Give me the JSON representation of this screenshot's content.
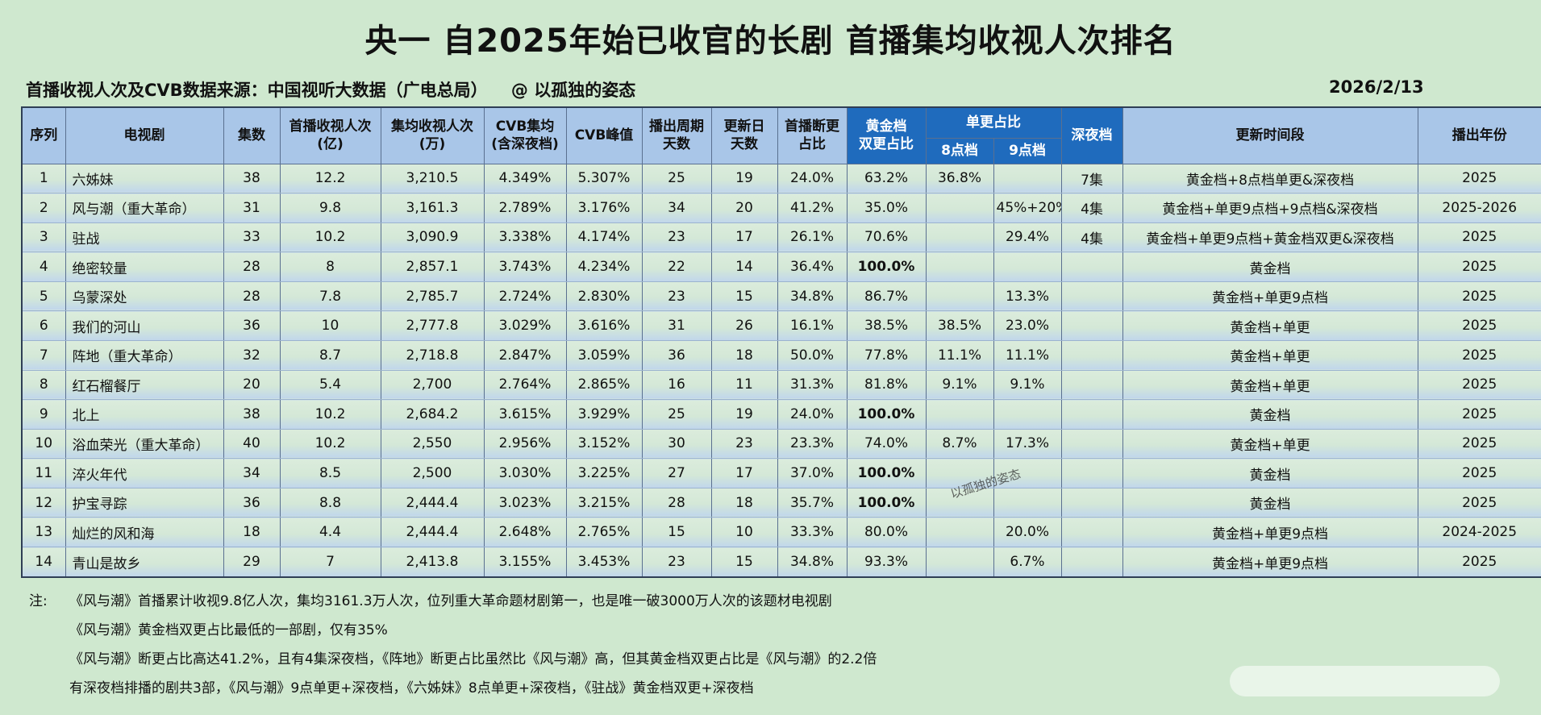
{
  "title": "央一 自2025年始已收官的长剧 首播集均收视人次排名",
  "source": "首播收视人次及CVB数据来源：中国视听大数据（广电总局）    @ 以孤独的姿态",
  "date": "2026/2/13",
  "headers": {
    "rank": "序列",
    "drama": "电视剧",
    "episodes": "集数",
    "viewers_line1": "首播收视人次",
    "viewers_line2": "(亿)",
    "avg_line1": "集均收视人次",
    "avg_line2": "(万)",
    "cvb_avg_line1": "CVB集均",
    "cvb_avg_line2": "(含深夜档)",
    "cvb_peak": "CVB峰值",
    "cycle_line1": "播出周期",
    "cycle_line2": "天数",
    "update_line1": "更新日",
    "update_line2": "天数",
    "break_line1": "首播断更",
    "break_line2": "占比",
    "gold_line1": "黄金档",
    "gold_line2": "双更占比",
    "single_group": "单更占比",
    "single_8": "8点档",
    "single_9": "9点档",
    "late": "深夜档",
    "slot": "更新时间段",
    "year": "播出年份"
  },
  "rows": [
    {
      "no": "1",
      "name": "六姊妹",
      "eps": "38",
      "viewers": "12.2",
      "avg": "3,210.5",
      "cvb_avg": "4.349%",
      "cvb_peak": "5.307%",
      "cycle": "25",
      "update": "19",
      "break": "24.0%",
      "gold": "63.2%",
      "s8": "36.8%",
      "s9": "",
      "late": "7集",
      "slot": "黄金档+8点档单更&深夜档",
      "year": "2025"
    },
    {
      "no": "2",
      "name": "风与潮（重大革命）",
      "eps": "31",
      "viewers": "9.8",
      "avg": "3,161.3",
      "cvb_avg": "2.789%",
      "cvb_peak": "3.176%",
      "cycle": "34",
      "update": "20",
      "break": "41.2%",
      "gold": "35.0%",
      "s8": "",
      "s9": "45%+20%",
      "late": "4集",
      "slot": "黄金档+单更9点档+9点档&深夜档",
      "year": "2025-2026"
    },
    {
      "no": "3",
      "name": "驻战",
      "eps": "33",
      "viewers": "10.2",
      "avg": "3,090.9",
      "cvb_avg": "3.338%",
      "cvb_peak": "4.174%",
      "cycle": "23",
      "update": "17",
      "break": "26.1%",
      "gold": "70.6%",
      "s8": "",
      "s9": "29.4%",
      "late": "4集",
      "slot": "黄金档+单更9点档+黄金档双更&深夜档",
      "year": "2025"
    },
    {
      "no": "4",
      "name": "绝密较量",
      "eps": "28",
      "viewers": "8",
      "avg": "2,857.1",
      "cvb_avg": "3.743%",
      "cvb_peak": "4.234%",
      "cycle": "22",
      "update": "14",
      "break": "36.4%",
      "gold": "100.0%",
      "s8": "",
      "s9": "",
      "late": "",
      "slot": "黄金档",
      "year": "2025"
    },
    {
      "no": "5",
      "name": "乌蒙深处",
      "eps": "28",
      "viewers": "7.8",
      "avg": "2,785.7",
      "cvb_avg": "2.724%",
      "cvb_peak": "2.830%",
      "cycle": "23",
      "update": "15",
      "break": "34.8%",
      "gold": "86.7%",
      "s8": "",
      "s9": "13.3%",
      "late": "",
      "slot": "黄金档+单更9点档",
      "year": "2025"
    },
    {
      "no": "6",
      "name": "我们的河山",
      "eps": "36",
      "viewers": "10",
      "avg": "2,777.8",
      "cvb_avg": "3.029%",
      "cvb_peak": "3.616%",
      "cycle": "31",
      "update": "26",
      "break": "16.1%",
      "gold": "38.5%",
      "s8": "38.5%",
      "s9": "23.0%",
      "late": "",
      "slot": "黄金档+单更",
      "year": "2025"
    },
    {
      "no": "7",
      "name": "阵地（重大革命）",
      "eps": "32",
      "viewers": "8.7",
      "avg": "2,718.8",
      "cvb_avg": "2.847%",
      "cvb_peak": "3.059%",
      "cycle": "36",
      "update": "18",
      "break": "50.0%",
      "gold": "77.8%",
      "s8": "11.1%",
      "s9": "11.1%",
      "late": "",
      "slot": "黄金档+单更",
      "year": "2025"
    },
    {
      "no": "8",
      "name": "红石榴餐厅",
      "eps": "20",
      "viewers": "5.4",
      "avg": "2,700",
      "cvb_avg": "2.764%",
      "cvb_peak": "2.865%",
      "cycle": "16",
      "update": "11",
      "break": "31.3%",
      "gold": "81.8%",
      "s8": "9.1%",
      "s9": "9.1%",
      "late": "",
      "slot": "黄金档+单更",
      "year": "2025"
    },
    {
      "no": "9",
      "name": "北上",
      "eps": "38",
      "viewers": "10.2",
      "avg": "2,684.2",
      "cvb_avg": "3.615%",
      "cvb_peak": "3.929%",
      "cycle": "25",
      "update": "19",
      "break": "24.0%",
      "gold": "100.0%",
      "s8": "",
      "s9": "",
      "late": "",
      "slot": "黄金档",
      "year": "2025"
    },
    {
      "no": "10",
      "name": "浴血荣光（重大革命）",
      "eps": "40",
      "viewers": "10.2",
      "avg": "2,550",
      "cvb_avg": "2.956%",
      "cvb_peak": "3.152%",
      "cycle": "30",
      "update": "23",
      "break": "23.3%",
      "gold": "74.0%",
      "s8": "8.7%",
      "s9": "17.3%",
      "late": "",
      "slot": "黄金档+单更",
      "year": "2025"
    },
    {
      "no": "11",
      "name": "淬火年代",
      "eps": "34",
      "viewers": "8.5",
      "avg": "2,500",
      "cvb_avg": "3.030%",
      "cvb_peak": "3.225%",
      "cycle": "27",
      "update": "17",
      "break": "37.0%",
      "gold": "100.0%",
      "s8": "",
      "s9": "",
      "late": "",
      "slot": "黄金档",
      "year": "2025"
    },
    {
      "no": "12",
      "name": "护宝寻踪",
      "eps": "36",
      "viewers": "8.8",
      "avg": "2,444.4",
      "cvb_avg": "3.023%",
      "cvb_peak": "3.215%",
      "cycle": "28",
      "update": "18",
      "break": "35.7%",
      "gold": "100.0%",
      "s8": "",
      "s9": "",
      "late": "",
      "slot": "黄金档",
      "year": "2025"
    },
    {
      "no": "13",
      "name": "灿烂的风和海",
      "eps": "18",
      "viewers": "4.4",
      "avg": "2,444.4",
      "cvb_avg": "2.648%",
      "cvb_peak": "2.765%",
      "cycle": "15",
      "update": "10",
      "break": "33.3%",
      "gold": "80.0%",
      "s8": "",
      "s9": "20.0%",
      "late": "",
      "slot": "黄金档+单更9点档",
      "year": "2024-2025"
    },
    {
      "no": "14",
      "name": "青山是故乡",
      "eps": "29",
      "viewers": "7",
      "avg": "2,413.8",
      "cvb_avg": "3.155%",
      "cvb_peak": "3.453%",
      "cycle": "23",
      "update": "15",
      "break": "34.8%",
      "gold": "93.3%",
      "s8": "",
      "s9": "6.7%",
      "late": "",
      "slot": "黄金档+单更9点档",
      "year": "2025"
    }
  ],
  "watermark": "以孤独的姿态",
  "notes": {
    "label": "注:",
    "lines": [
      "《风与潮》首播累计收视9.8亿人次，集均3161.3万人次，位列重大革命题材剧第一，也是唯一破3000万人次的该题材电视剧",
      "《风与潮》黄金档双更占比最低的一部剧，仅有35%",
      "《风与潮》断更占比高达41.2%，且有4集深夜档，《阵地》断更占比虽然比《风与潮》高，但其黄金档双更占比是《风与潮》的2.2倍",
      "有深夜档排播的剧共3部，《风与潮》9点单更+深夜档，《六姊妹》8点单更+深夜档，《驻战》黄金档双更+深夜档"
    ]
  }
}
